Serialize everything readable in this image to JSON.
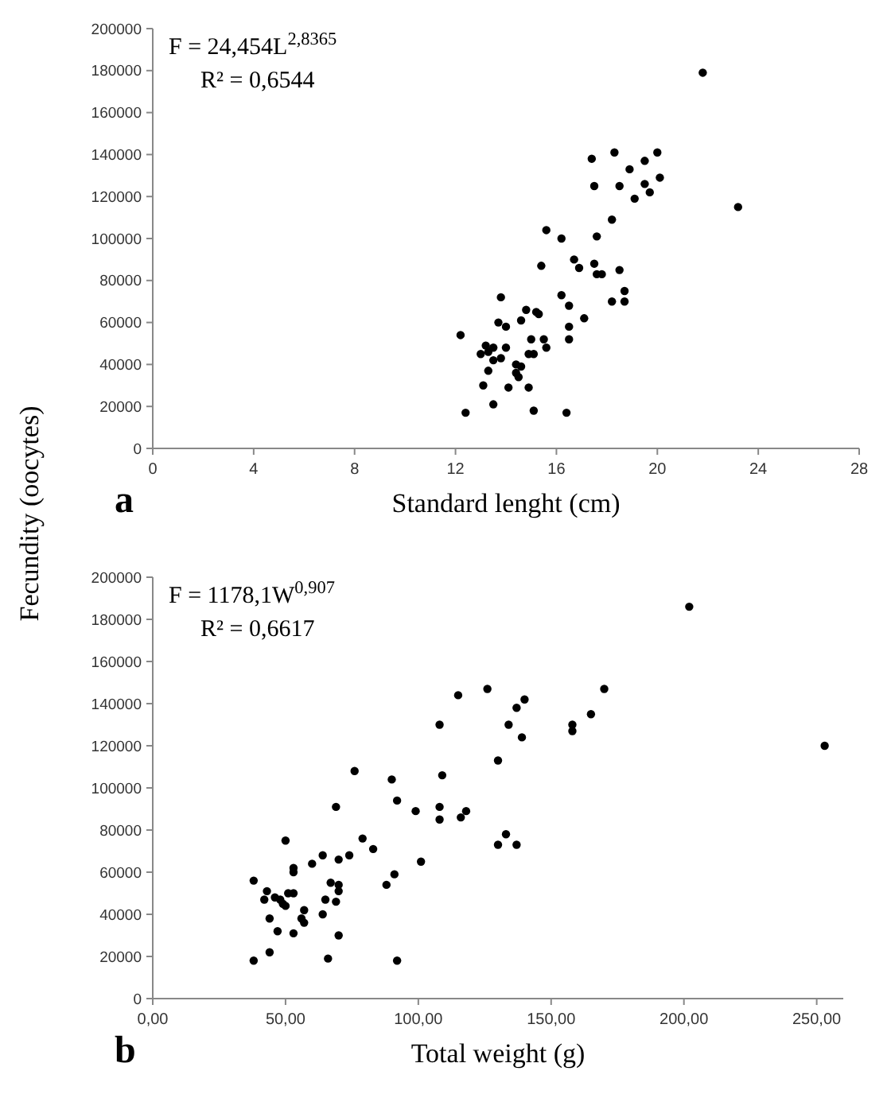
{
  "chart_data": [
    {
      "type": "scatter",
      "xlabel": "Standard lenght (cm)",
      "ylabel": "Fecundity (oocytes)",
      "annotations": [
        "F = 24,454L$^{2,8365}$",
        "R² = 0,6544",
        "a"
      ],
      "marker": "circle",
      "grid": false,
      "xlim": [
        0,
        28
      ],
      "xticks": [
        0,
        4,
        8,
        12,
        16,
        20,
        24,
        28
      ],
      "ylim": [
        0,
        200000
      ],
      "yticks": [
        0,
        20000,
        40000,
        60000,
        80000,
        100000,
        120000,
        140000,
        160000,
        180000,
        200000
      ],
      "series": [
        {
          "color": "#000000",
          "x": [
            21.8,
            23.2,
            17.4,
            18.3,
            20.0,
            19.5,
            18.9,
            20.1,
            17.5,
            18.5,
            19.5,
            19.7,
            19.1,
            18.2,
            17.6,
            15.6,
            16.2,
            15.4,
            16.7,
            16.9,
            17.5,
            18.5,
            17.6,
            17.8,
            16.2,
            13.8,
            18.7,
            18.7,
            18.2,
            14.8,
            15.2,
            15.3,
            16.5,
            14.6,
            17.1,
            13.7,
            14.0,
            16.5,
            12.2,
            15.0,
            15.5,
            16.5,
            15.6,
            13.2,
            13.5,
            14.0,
            13.0,
            13.3,
            14.9,
            15.1,
            13.8,
            13.5,
            14.4,
            14.6,
            14.4,
            13.3,
            14.5,
            13.1,
            14.1,
            14.9,
            13.5,
            12.4,
            15.1,
            16.4
          ],
          "values": [
            179000,
            115000,
            138000,
            141000,
            141000,
            137000,
            133000,
            129000,
            125000,
            125000,
            126000,
            122000,
            119000,
            109000,
            101000,
            104000,
            100000,
            87000,
            90000,
            86000,
            88000,
            85000,
            83000,
            83000,
            73000,
            72000,
            75000,
            70000,
            70000,
            66000,
            65000,
            64000,
            68000,
            61000,
            62000,
            60000,
            58000,
            58000,
            54000,
            52000,
            52000,
            52000,
            48000,
            49000,
            48000,
            48000,
            45000,
            46000,
            45000,
            45000,
            43000,
            42000,
            40000,
            39000,
            36000,
            37000,
            34000,
            30000,
            29000,
            29000,
            21000,
            17000,
            18000,
            17000
          ]
        }
      ]
    },
    {
      "type": "scatter",
      "xlabel": "Total weight (g)",
      "annotations": [
        "F = 1178,1W$^{0,907}$",
        "R² = 0,6617",
        "b"
      ],
      "marker": "circle",
      "grid": false,
      "xlim": [
        0,
        260
      ],
      "xticks": [
        {
          "value": 0,
          "label": "0,00"
        },
        {
          "value": 50,
          "label": "50,00"
        },
        {
          "value": 100,
          "label": "100,00"
        },
        {
          "value": 150,
          "label": "150,00"
        },
        {
          "value": 200,
          "label": "200,00"
        },
        {
          "value": 250,
          "label": "250,00"
        }
      ],
      "ylim": [
        0,
        200000
      ],
      "yticks": [
        0,
        20000,
        40000,
        60000,
        80000,
        100000,
        120000,
        140000,
        160000,
        180000,
        200000
      ],
      "series": [
        {
          "color": "#000000",
          "x": [
            202,
            253,
            115,
            126,
            140,
            137,
            170,
            165,
            158,
            158,
            108,
            134,
            139,
            130,
            76,
            90,
            109,
            92,
            108,
            69,
            99,
            108,
            116,
            118,
            130,
            133,
            137,
            50,
            79,
            83,
            101,
            60,
            64,
            70,
            74,
            53,
            53,
            91,
            88,
            38,
            67,
            70,
            43,
            42,
            46,
            48,
            49,
            50,
            51,
            53,
            70,
            65,
            69,
            57,
            56,
            57,
            44,
            64,
            47,
            53,
            70,
            44,
            38,
            66,
            92
          ],
          "values": [
            186000,
            120000,
            144000,
            147000,
            142000,
            138000,
            147000,
            135000,
            130000,
            127000,
            130000,
            130000,
            124000,
            113000,
            108000,
            104000,
            106000,
            94000,
            91000,
            91000,
            89000,
            85000,
            86000,
            89000,
            73000,
            78000,
            73000,
            75000,
            76000,
            71000,
            65000,
            64000,
            68000,
            66000,
            68000,
            62000,
            60000,
            59000,
            54000,
            56000,
            55000,
            54000,
            51000,
            47000,
            48000,
            47000,
            45000,
            44000,
            50000,
            50000,
            51000,
            47000,
            46000,
            42000,
            38000,
            36000,
            38000,
            40000,
            32000,
            31000,
            30000,
            22000,
            18000,
            19000,
            18000
          ]
        }
      ]
    }
  ]
}
